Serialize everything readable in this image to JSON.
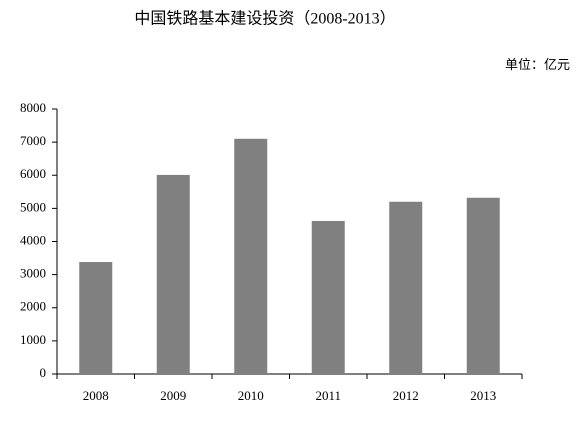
{
  "chart_data": {
    "type": "bar",
    "title": "中国铁路基本建设投资（2008-2013）",
    "unit": "单位：亿元",
    "categories": [
      "2008",
      "2009",
      "2010",
      "2011",
      "2012",
      "2013"
    ],
    "values": [
      3380,
      6010,
      7100,
      4620,
      5200,
      5320
    ],
    "color": "#808080",
    "ylim": [
      0,
      8000
    ],
    "yticks": [
      0,
      1000,
      2000,
      3000,
      4000,
      5000,
      6000,
      7000,
      8000
    ],
    "grid": false
  }
}
